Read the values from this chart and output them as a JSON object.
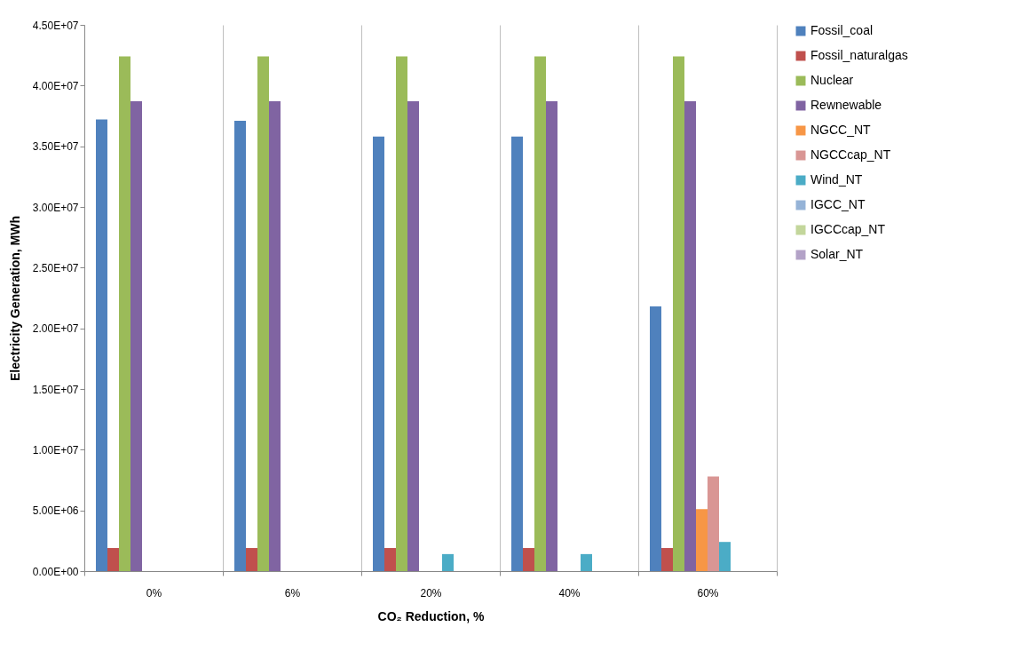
{
  "chart_data": {
    "type": "bar",
    "xlabel": "CO₂ Reduction, %",
    "ylabel": "Electricity Generation, MWh",
    "categories": [
      "0%",
      "6%",
      "20%",
      "40%",
      "60%"
    ],
    "series": [
      {
        "name": "Fossil_coal",
        "color": "#4f81bd",
        "values": [
          37200000,
          37100000,
          35800000,
          35800000,
          21800000
        ]
      },
      {
        "name": "Fossil_naturalgas",
        "color": "#c0504d",
        "values": [
          1900000,
          1900000,
          1900000,
          1900000,
          1900000
        ]
      },
      {
        "name": "Nuclear",
        "color": "#9bbb59",
        "values": [
          42400000,
          42400000,
          42400000,
          42400000,
          42400000
        ]
      },
      {
        "name": "Rewnewable",
        "color": "#8064a2",
        "values": [
          38700000,
          38700000,
          38700000,
          38700000,
          38700000
        ]
      },
      {
        "name": "NGCC_NT",
        "color": "#f79646",
        "values": [
          0,
          0,
          0,
          0,
          5100000
        ]
      },
      {
        "name": "NGCCcap_NT",
        "color": "#d99694",
        "values": [
          0,
          0,
          0,
          0,
          7800000
        ]
      },
      {
        "name": "Wind_NT",
        "color": "#4bacc6",
        "values": [
          0,
          0,
          1400000,
          1400000,
          2400000
        ]
      },
      {
        "name": "IGCC_NT",
        "color": "#95b3d7",
        "values": [
          0,
          0,
          0,
          0,
          0
        ]
      },
      {
        "name": "IGCCcap_NT",
        "color": "#c3d69b",
        "values": [
          0,
          0,
          0,
          0,
          0
        ]
      },
      {
        "name": "Solar_NT",
        "color": "#b3a2c7",
        "values": [
          0,
          0,
          0,
          0,
          0
        ]
      }
    ],
    "ylim": [
      0,
      45000000
    ],
    "yticks": [
      {
        "value": 0,
        "label": "0.00E+00"
      },
      {
        "value": 5000000,
        "label": "5.00E+06"
      },
      {
        "value": 10000000,
        "label": "1.00E+07"
      },
      {
        "value": 15000000,
        "label": "1.50E+07"
      },
      {
        "value": 20000000,
        "label": "2.00E+07"
      },
      {
        "value": 25000000,
        "label": "2.50E+07"
      },
      {
        "value": 30000000,
        "label": "3.00E+07"
      },
      {
        "value": 35000000,
        "label": "3.50E+07"
      },
      {
        "value": 40000000,
        "label": "4.00E+07"
      },
      {
        "value": 45000000,
        "label": "4.50E+07"
      }
    ],
    "grid": "x",
    "legend": "right"
  }
}
